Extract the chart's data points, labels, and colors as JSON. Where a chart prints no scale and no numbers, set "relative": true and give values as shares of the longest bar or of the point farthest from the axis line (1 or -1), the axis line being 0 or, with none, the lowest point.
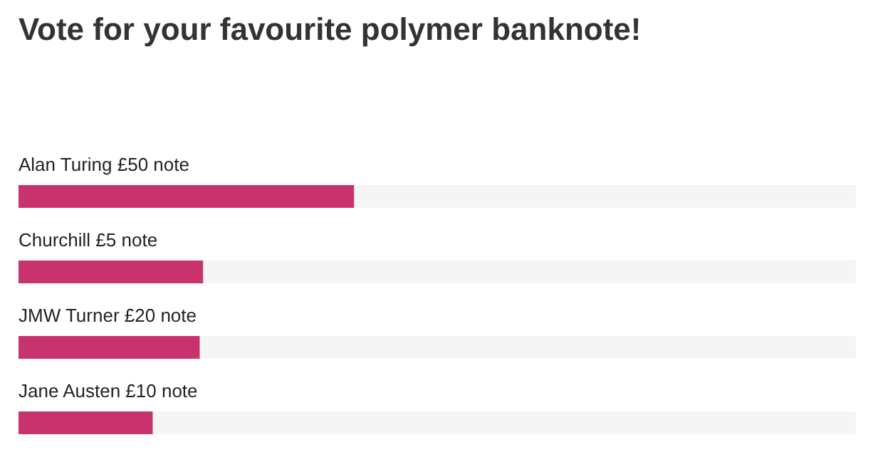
{
  "chart_data": {
    "type": "bar",
    "orientation": "horizontal",
    "relative": true,
    "title": "Vote for your favourite polymer banknote!",
    "categories": [
      "Alan Turing £50 note",
      "Churchill £5 note",
      "JMW Turner £20 note",
      "Jane Austen £10 note"
    ],
    "values": [
      1,
      0.55,
      0.54,
      0.4
    ],
    "color": "#c9336d"
  }
}
